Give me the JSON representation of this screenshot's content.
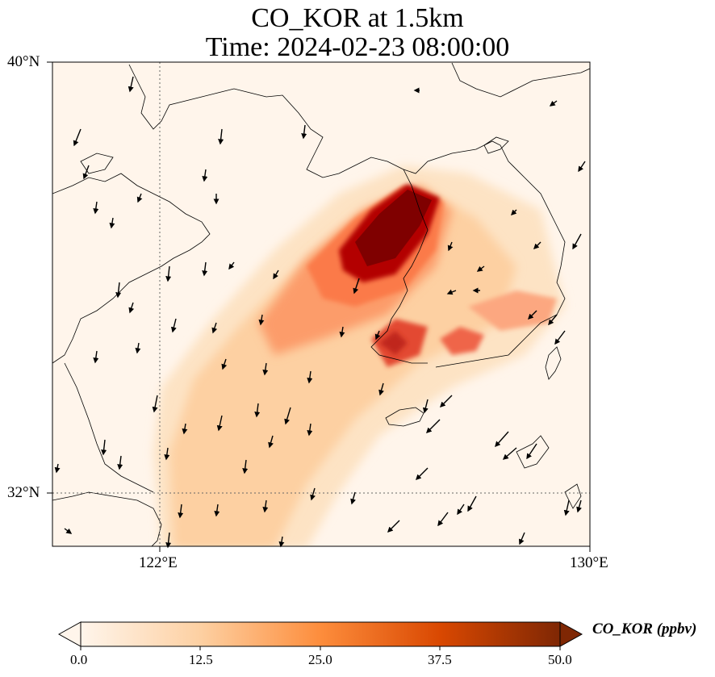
{
  "title_line1": "CO_KOR at 1.5km",
  "title_line2": "Time: 2024-02-23 08:00:00",
  "lat_labels": [
    "40°N",
    "32°N"
  ],
  "lon_labels": [
    "122°E",
    "130°E"
  ],
  "colorbar": {
    "label": "CO_KOR (ppbv)",
    "ticks": [
      "0.0",
      "12.5",
      "25.0",
      "37.5",
      "50.0"
    ],
    "min": 0,
    "max": 50,
    "colormap": [
      "#fff5eb",
      "#fdd0a2",
      "#fd8d3c",
      "#d94801",
      "#7f2704"
    ]
  },
  "map": {
    "extent_lon": [
      120,
      130
    ],
    "extent_lat": [
      31,
      40
    ],
    "gridline_lon": 122,
    "gridline_lat": 32,
    "background": "#fff5eb",
    "plume_color_high": "#7f0000",
    "plume_color_mid": "#e34a33",
    "plume_color_low": "#fdd49e"
  }
}
